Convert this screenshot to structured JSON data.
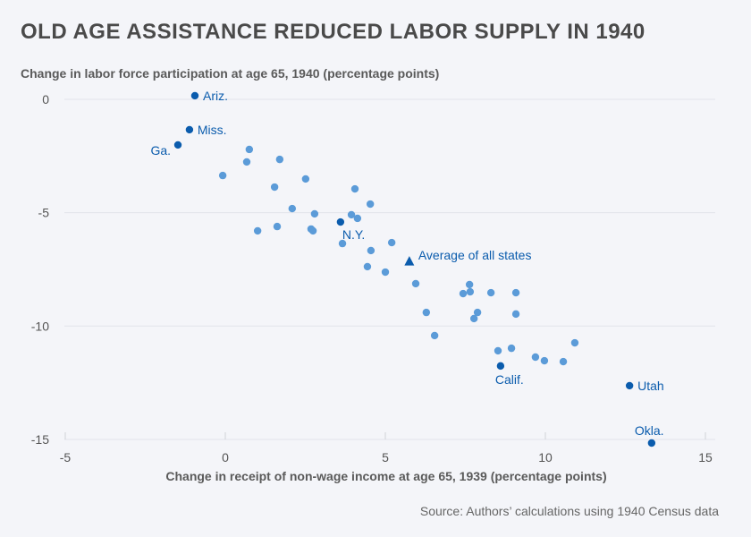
{
  "title": "OLD AGE ASSISTANCE REDUCED LABOR SUPPLY IN 1940",
  "source": "Source: Authors’ calculations using 1940 Census data",
  "chart_data": {
    "type": "scatter",
    "title": "OLD AGE ASSISTANCE REDUCED LABOR SUPPLY IN 1940",
    "xlabel": "Change in receipt of non-wage income at age 65, 1939 (percentage points)",
    "ylabel": "Change in labor force participation at age 65, 1940 (percentage points)",
    "xlim": [
      -5,
      15
    ],
    "ylim": [
      -15,
      0
    ],
    "xticks": [
      -5,
      0,
      5,
      10,
      15
    ],
    "yticks": [
      0,
      -5,
      -10,
      -15
    ],
    "xtick_labels": [
      "-5",
      "0",
      "5",
      "10",
      "15"
    ],
    "ytick_labels": [
      "0",
      "-5",
      "-10",
      "-15"
    ],
    "grid": "horizontal",
    "colors": {
      "highlight": "#0b5cad",
      "other": "#5b9bd8",
      "label": "#0b5cad"
    },
    "highlighted_points": [
      {
        "label": "Ariz.",
        "x": -0.95,
        "y": 0.16,
        "label_pos": "right"
      },
      {
        "label": "Miss.",
        "x": -1.12,
        "y": -1.34,
        "label_pos": "right"
      },
      {
        "label": "Ga.",
        "x": -1.48,
        "y": -2.01,
        "label_pos": "left"
      },
      {
        "label": "N.Y.",
        "x": 3.6,
        "y": -5.41,
        "label_pos": "below-right"
      },
      {
        "label": "Calif.",
        "x": 8.6,
        "y": -11.76,
        "label_pos": "below"
      },
      {
        "label": "Utah",
        "x": 12.63,
        "y": -12.63,
        "label_pos": "right"
      },
      {
        "label": "Okla.",
        "x": 13.32,
        "y": -15.16,
        "label_pos": "above"
      }
    ],
    "average": {
      "label": "Average of all states",
      "x": 5.75,
      "y": -7.15,
      "marker": "triangle"
    },
    "points": [
      {
        "x": 0.75,
        "y": -2.21
      },
      {
        "x": 0.67,
        "y": -2.76
      },
      {
        "x": 1.7,
        "y": -2.65
      },
      {
        "x": -0.08,
        "y": -3.36
      },
      {
        "x": 2.51,
        "y": -3.51
      },
      {
        "x": 1.54,
        "y": -3.87
      },
      {
        "x": 4.05,
        "y": -3.95
      },
      {
        "x": 4.53,
        "y": -4.62
      },
      {
        "x": 2.09,
        "y": -4.82
      },
      {
        "x": 2.79,
        "y": -5.05
      },
      {
        "x": 3.94,
        "y": -5.09
      },
      {
        "x": 4.13,
        "y": -5.25
      },
      {
        "x": 1.01,
        "y": -5.8
      },
      {
        "x": 1.62,
        "y": -5.61
      },
      {
        "x": 2.68,
        "y": -5.72
      },
      {
        "x": 2.74,
        "y": -5.8
      },
      {
        "x": 3.66,
        "y": -6.36
      },
      {
        "x": 5.2,
        "y": -6.32
      },
      {
        "x": 4.55,
        "y": -6.67
      },
      {
        "x": 4.44,
        "y": -7.38
      },
      {
        "x": 5.0,
        "y": -7.62
      },
      {
        "x": 5.95,
        "y": -8.13
      },
      {
        "x": 7.63,
        "y": -8.17
      },
      {
        "x": 7.43,
        "y": -8.57
      },
      {
        "x": 7.65,
        "y": -8.49
      },
      {
        "x": 8.3,
        "y": -8.53
      },
      {
        "x": 9.08,
        "y": -8.53
      },
      {
        "x": 6.28,
        "y": -9.4
      },
      {
        "x": 7.88,
        "y": -9.4
      },
      {
        "x": 7.77,
        "y": -9.67
      },
      {
        "x": 9.08,
        "y": -9.47
      },
      {
        "x": 6.54,
        "y": -10.42
      },
      {
        "x": 8.52,
        "y": -11.09
      },
      {
        "x": 8.94,
        "y": -10.98
      },
      {
        "x": 9.69,
        "y": -11.37
      },
      {
        "x": 9.97,
        "y": -11.53
      },
      {
        "x": 10.56,
        "y": -11.57
      },
      {
        "x": 10.92,
        "y": -10.74
      }
    ]
  }
}
